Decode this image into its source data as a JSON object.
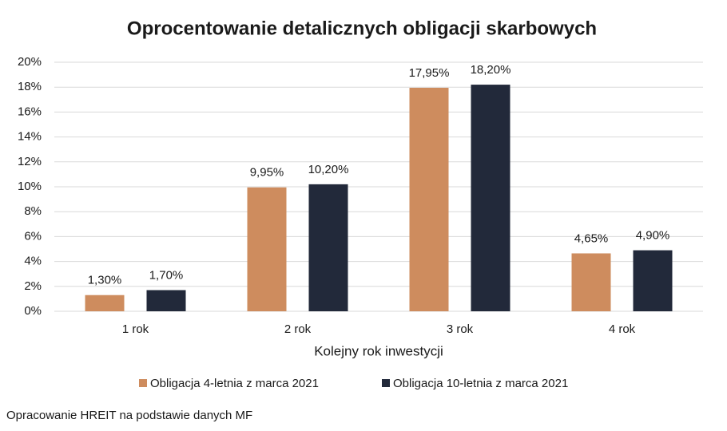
{
  "chart_data": {
    "type": "bar",
    "title": "Oprocentowanie detalicznych obligacji skarbowych",
    "x_label": "Kolejny rok inwestycji",
    "categories": [
      "1 rok",
      "2 rok",
      "3 rok",
      "4 rok"
    ],
    "series": [
      {
        "name": "Obligacja 4-letnia z marca 2021",
        "color": "#ce8c5e",
        "values": [
          1.3,
          9.95,
          17.95,
          4.65
        ],
        "value_labels": [
          "1,30%",
          "9,95%",
          "17,95%",
          "4,65%"
        ]
      },
      {
        "name": "Obligacja 10-letnia z marca 2021",
        "color": "#22293a",
        "values": [
          1.7,
          10.2,
          18.2,
          4.9
        ],
        "value_labels": [
          "1,70%",
          "10,20%",
          "18,20%",
          "4,90%"
        ]
      }
    ],
    "ylim": [
      0,
      20
    ],
    "yticks": [
      {
        "value": 0,
        "label": "0%"
      },
      {
        "value": 2,
        "label": "2%"
      },
      {
        "value": 4,
        "label": "4%"
      },
      {
        "value": 6,
        "label": "6%"
      },
      {
        "value": 8,
        "label": "8%"
      },
      {
        "value": 10,
        "label": "10%"
      },
      {
        "value": 12,
        "label": "12%"
      },
      {
        "value": 14,
        "label": "14%"
      },
      {
        "value": 16,
        "label": "16%"
      },
      {
        "value": 18,
        "label": "18%"
      },
      {
        "value": 20,
        "label": "20%"
      }
    ],
    "grid": true,
    "legend": "bottom",
    "source": "Opracowanie HREIT na podstawie danych MF"
  }
}
